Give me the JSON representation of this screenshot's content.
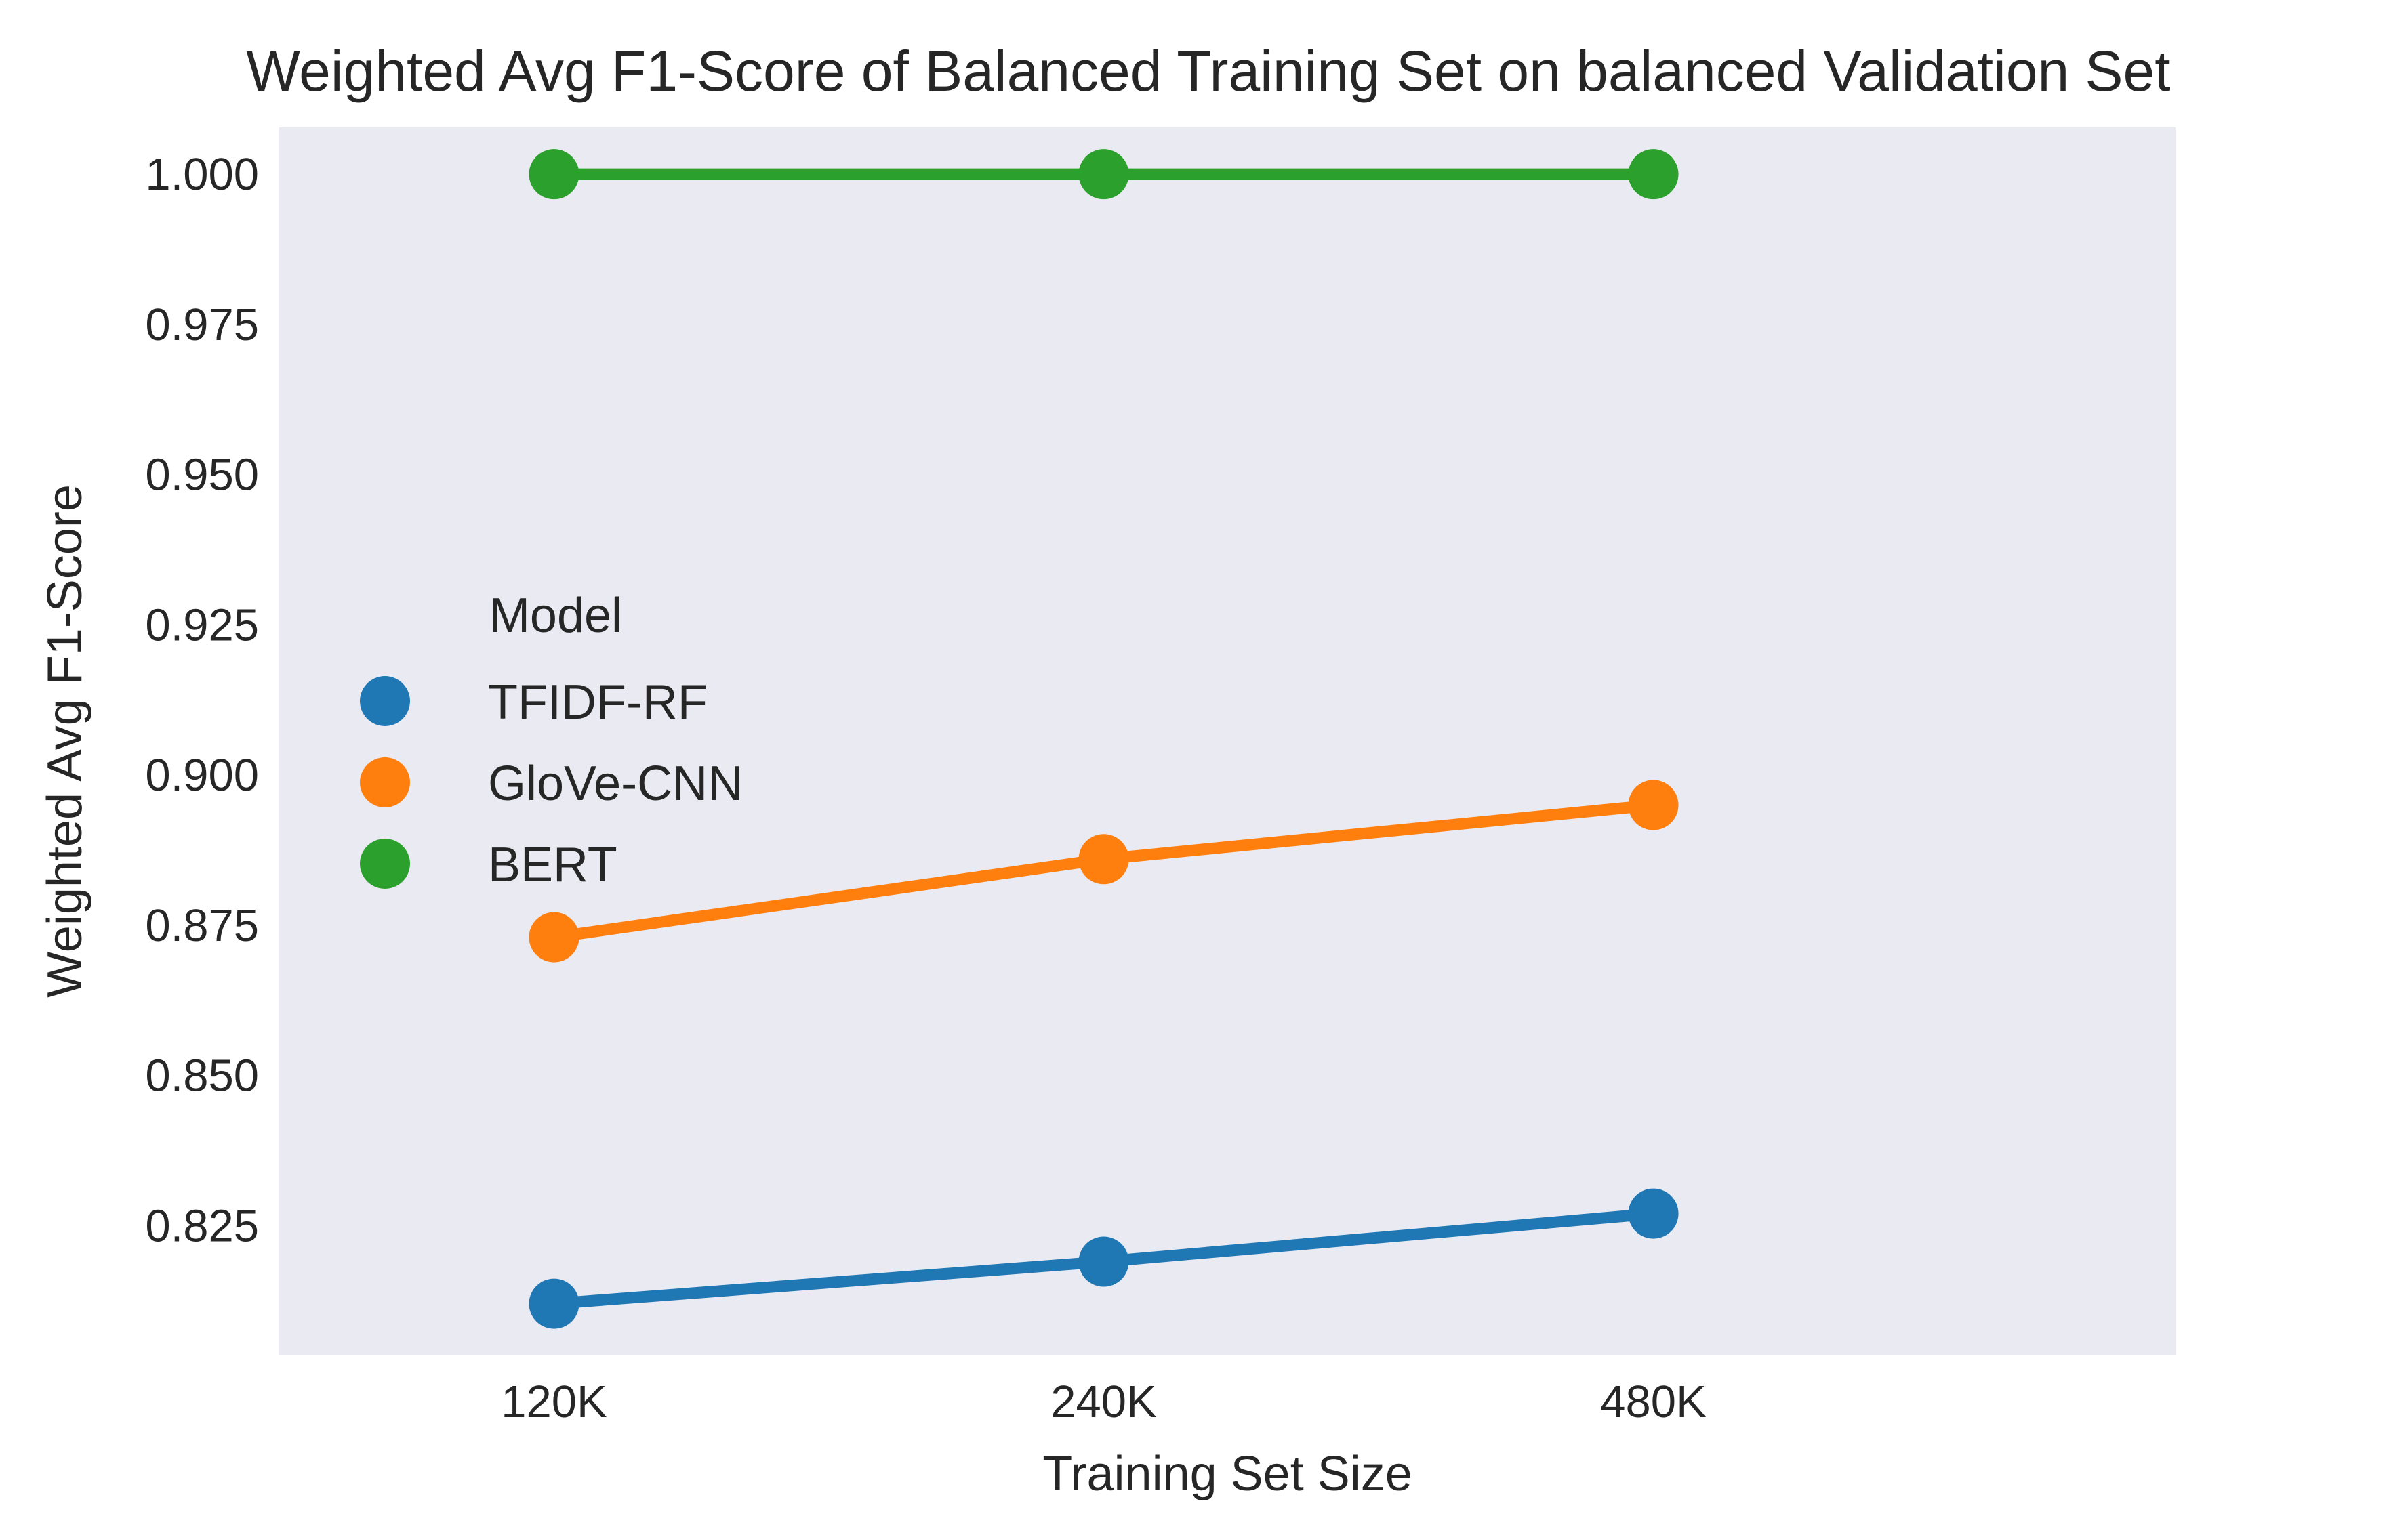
{
  "chart_data": {
    "type": "line",
    "title": "Weighted Avg F1-Score of Balanced Training Set on balanced Validation Set",
    "xlabel": "Training Set Size",
    "ylabel": "Weighted Avg F1-Score",
    "categories": [
      "120K",
      "240K",
      "480K"
    ],
    "ylim": [
      0.8035,
      1.0078
    ],
    "yticks": [
      0.825,
      0.85,
      0.875,
      0.9,
      0.925,
      0.95,
      0.975,
      1.0
    ],
    "ytick_labels": [
      "0.825",
      "0.850",
      "0.875",
      "0.900",
      "0.925",
      "0.950",
      "0.975",
      "1.000"
    ],
    "grid": false,
    "background": "#eaeaf2",
    "legend": {
      "title": "Model",
      "position": "center-left"
    },
    "series": [
      {
        "name": "TFIDF-RF",
        "color": "#1f77b4",
        "values": [
          0.812,
          0.819,
          0.827
        ]
      },
      {
        "name": "GloVe-CNN",
        "color": "#ff7f0e",
        "values": [
          0.873,
          0.886,
          0.895
        ]
      },
      {
        "name": "BERT",
        "color": "#2ca02c",
        "values": [
          1.0,
          1.0,
          1.0
        ]
      }
    ]
  }
}
